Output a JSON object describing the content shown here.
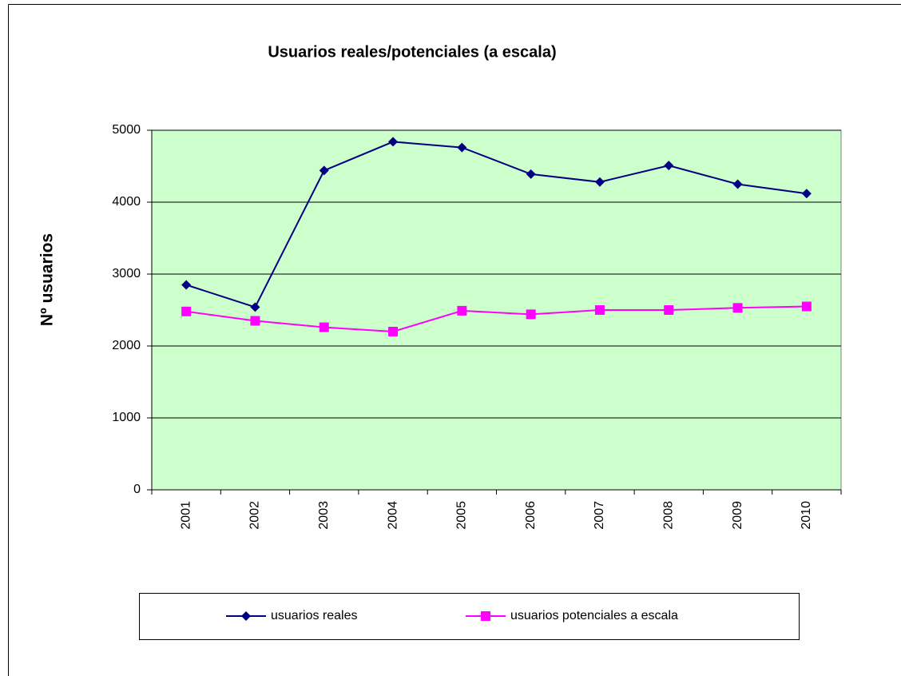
{
  "chart_data": {
    "type": "line",
    "title": "Usuarios reales/potenciales (a escala)",
    "y_label": "Nº usuarios",
    "categories": [
      "2001",
      "2002",
      "2003",
      "2004",
      "2005",
      "2006",
      "2007",
      "2008",
      "2009",
      "2010"
    ],
    "series": [
      {
        "name": "usuarios reales",
        "color": "#000080",
        "marker": "diamond",
        "values": [
          2850,
          2540,
          4440,
          4840,
          4760,
          4390,
          4280,
          4510,
          4250,
          4120
        ]
      },
      {
        "name": "usuarios potenciales a escala",
        "color": "#ff00ff",
        "marker": "square",
        "values": [
          2480,
          2350,
          2260,
          2200,
          2490,
          2440,
          2500,
          2500,
          2530,
          2550
        ]
      }
    ],
    "ylim": [
      0,
      5000
    ],
    "yticks": [
      0,
      1000,
      2000,
      3000,
      4000,
      5000
    ],
    "grid": true,
    "legend": "bottom",
    "plot_background": "#ccffcc"
  }
}
